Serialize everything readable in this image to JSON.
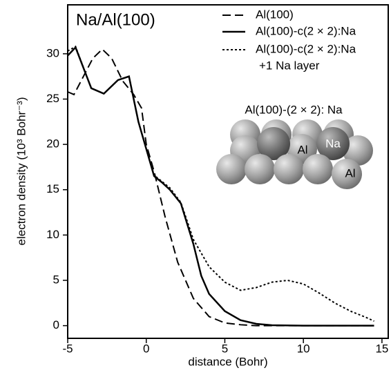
{
  "chart_data": {
    "type": "line",
    "title": "Na/Al(100)",
    "xlabel": "distance (Bohr)",
    "ylabel": "electron density (10³ Bohr⁻³)",
    "xlim": [
      -5,
      15.4
    ],
    "ylim": [
      -1.4,
      35.4
    ],
    "xticks": [
      -5,
      0,
      5,
      10,
      15
    ],
    "yticks": [
      0,
      5,
      10,
      15,
      20,
      25,
      30
    ],
    "legend": "upper right",
    "series": [
      {
        "name": "Al(100)",
        "color": "#000000",
        "dash": "dashed",
        "x": [
          -5,
          -4.6,
          -4,
          -3.4,
          -2.8,
          -2.2,
          -1.5,
          -0.8,
          -0.3,
          0,
          0.5,
          1.2,
          2,
          3,
          4,
          5,
          6,
          7,
          14.5
        ],
        "values": [
          25.8,
          25.5,
          27.5,
          29.5,
          30.5,
          29.5,
          27,
          25.5,
          24,
          20,
          17,
          12,
          7,
          3,
          1,
          0.3,
          0.1,
          0,
          0
        ]
      },
      {
        "name": "Al(100)-c(2 × 2):Na",
        "color": "#000000",
        "dash": "solid",
        "x": [
          -5,
          -4.5,
          -3.5,
          -2.7,
          -1.8,
          -1.1,
          -0.5,
          0,
          0.5,
          1,
          1.5,
          2.2,
          3,
          3.5,
          4,
          5,
          6,
          7,
          8,
          10,
          14.5
        ],
        "values": [
          29.8,
          30.7,
          26.2,
          25.6,
          27.1,
          27.5,
          22.5,
          19.5,
          16.5,
          15.8,
          15,
          13.5,
          9,
          5.5,
          3.5,
          1.6,
          0.6,
          0.2,
          0.05,
          0,
          0
        ]
      },
      {
        "name": "Al(100)-c(2 × 2):Na",
        "note": "+1 Na layer",
        "color": "#000000",
        "dash": "dotted",
        "x": [
          -5,
          -4.5,
          -3.5,
          -2.7,
          -1.8,
          -1.1,
          -0.5,
          0,
          0.5,
          1,
          1.5,
          2.2,
          3,
          4,
          5,
          6,
          7,
          8,
          9,
          10,
          11,
          12,
          13,
          14,
          14.5
        ],
        "values": [
          30.3,
          30.8,
          26.2,
          25.6,
          27.1,
          27.5,
          22.5,
          19.5,
          16.6,
          15.9,
          15.2,
          13.6,
          9.5,
          6.5,
          4.8,
          3.9,
          4.2,
          4.8,
          5.0,
          4.6,
          3.6,
          2.5,
          1.6,
          0.9,
          0.5
        ]
      }
    ],
    "inset": {
      "label": "Al(100)-(2 × 2): Na",
      "na_label": "Na",
      "al_labels": [
        "Al",
        "Al"
      ]
    }
  }
}
